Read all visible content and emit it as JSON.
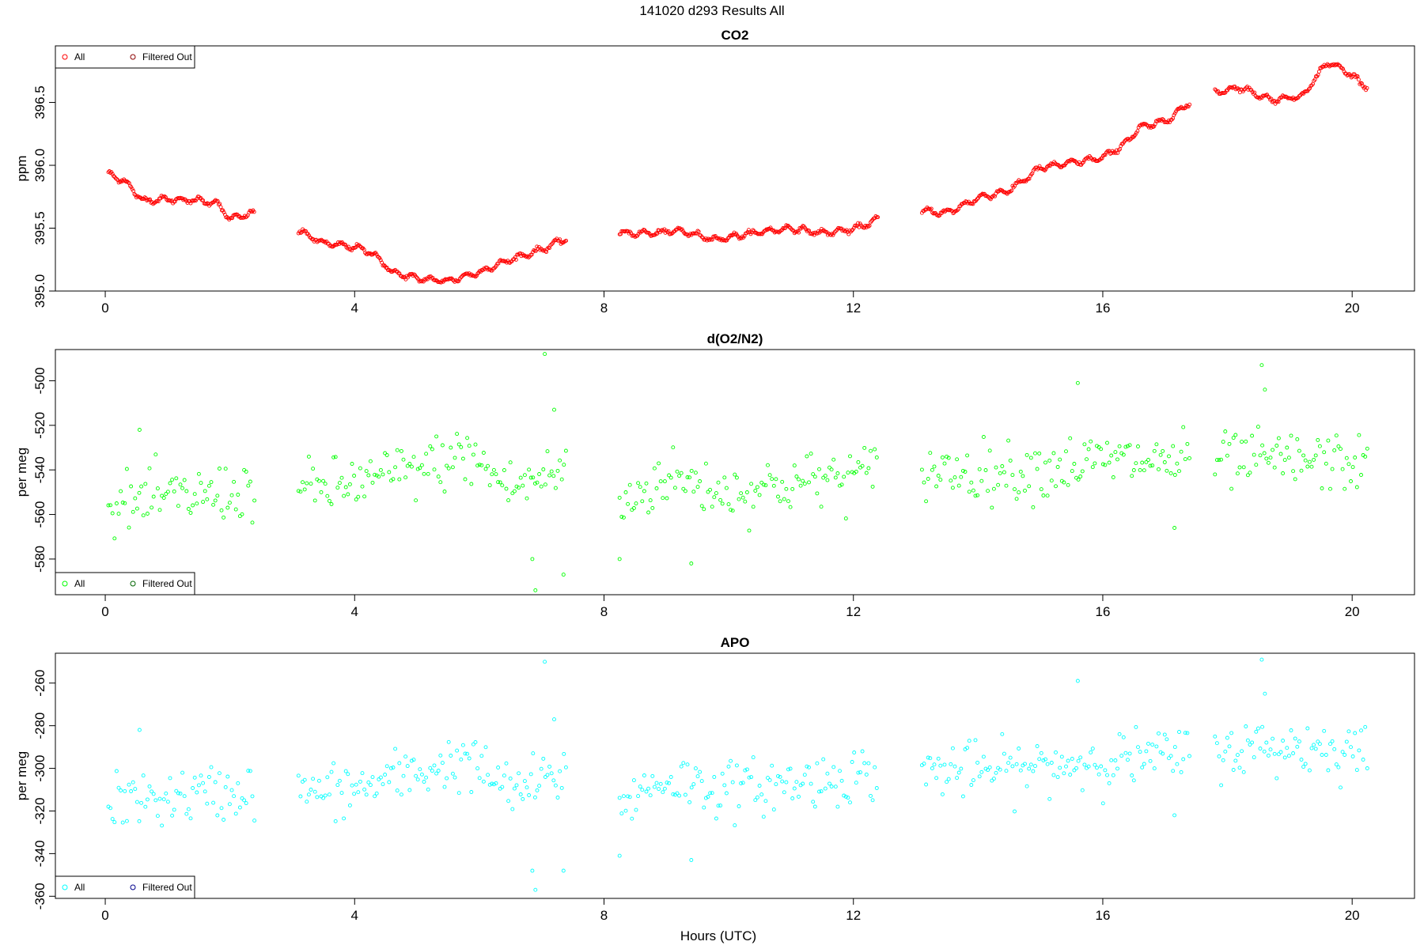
{
  "page_title": "141020   d293   Results All",
  "xlabel": "Hours (UTC)",
  "charts": [
    {
      "title": "CO2",
      "ylabel": "ppm",
      "color": "#ff0000",
      "legend": {
        "all": "All",
        "filtered": "Filtered Out",
        "filtered_color": "#8b0000",
        "position": "top-left"
      },
      "xlim": [
        -0.8,
        21.0
      ],
      "ylim": [
        395.0,
        396.95
      ],
      "xticks": [
        0,
        4,
        8,
        12,
        16,
        20
      ],
      "yticks": [
        395.0,
        395.5,
        396.0,
        396.5
      ],
      "ytick_labels": [
        "395.0",
        "395.5",
        "396.0",
        "396.5"
      ],
      "kind": "smooth",
      "segments": [
        {
          "range": [
            0.05,
            2.4
          ],
          "knots": [
            [
              0.05,
              395.93
            ],
            [
              0.3,
              395.88
            ],
            [
              0.6,
              395.72
            ],
            [
              1.0,
              395.73
            ],
            [
              1.5,
              395.72
            ],
            [
              1.8,
              395.7
            ],
            [
              2.0,
              395.57
            ],
            [
              2.2,
              395.6
            ],
            [
              2.4,
              395.62
            ]
          ]
        },
        {
          "range": [
            3.1,
            7.4
          ],
          "knots": [
            [
              3.1,
              395.48
            ],
            [
              3.5,
              395.38
            ],
            [
              4.0,
              395.35
            ],
            [
              4.3,
              395.3
            ],
            [
              4.6,
              395.15
            ],
            [
              5.0,
              395.1
            ],
            [
              5.5,
              395.08
            ],
            [
              6.0,
              395.15
            ],
            [
              6.5,
              395.25
            ],
            [
              7.0,
              395.33
            ],
            [
              7.4,
              395.42
            ]
          ]
        },
        {
          "range": [
            8.25,
            12.4
          ],
          "knots": [
            [
              8.25,
              395.46
            ],
            [
              8.8,
              395.46
            ],
            [
              9.2,
              395.48
            ],
            [
              9.8,
              395.41
            ],
            [
              10.5,
              395.47
            ],
            [
              11.0,
              395.5
            ],
            [
              11.5,
              395.46
            ],
            [
              12.0,
              395.49
            ],
            [
              12.4,
              395.57
            ]
          ]
        },
        {
          "range": [
            13.1,
            17.4
          ],
          "knots": [
            [
              13.1,
              395.64
            ],
            [
              13.5,
              395.62
            ],
            [
              14.0,
              395.74
            ],
            [
              14.5,
              395.8
            ],
            [
              15.0,
              395.98
            ],
            [
              15.5,
              396.02
            ],
            [
              16.0,
              396.06
            ],
            [
              16.3,
              396.15
            ],
            [
              16.6,
              396.3
            ],
            [
              17.0,
              396.35
            ],
            [
              17.4,
              396.5
            ]
          ]
        },
        {
          "range": [
            17.8,
            20.25
          ],
          "knots": [
            [
              17.8,
              396.58
            ],
            [
              18.2,
              396.62
            ],
            [
              18.7,
              396.52
            ],
            [
              19.2,
              396.55
            ],
            [
              19.6,
              396.82
            ],
            [
              19.9,
              396.75
            ],
            [
              20.25,
              396.62
            ]
          ]
        }
      ],
      "noise": 0.02
    },
    {
      "title": "d(O2/N2)",
      "ylabel": "per meg",
      "color": "#00ff00",
      "legend": {
        "all": "All",
        "filtered": "Filtered Out",
        "filtered_color": "#006400",
        "position": "bottom-left"
      },
      "xlim": [
        -0.8,
        21.0
      ],
      "ylim": [
        -596,
        -486
      ],
      "xticks": [
        0,
        4,
        8,
        12,
        16,
        20
      ],
      "yticks": [
        -580,
        -560,
        -540,
        -520,
        -500
      ],
      "ytick_labels": [
        "-580",
        "-560",
        "-540",
        "-520",
        "-500"
      ],
      "kind": "scatter",
      "segments": [
        {
          "range": [
            0.05,
            2.4
          ],
          "knots": [
            [
              0.05,
              -556
            ],
            [
              1.0,
              -553
            ],
            [
              2.4,
              -549
            ]
          ]
        },
        {
          "range": [
            3.1,
            7.4
          ],
          "knots": [
            [
              3.1,
              -550
            ],
            [
              4.0,
              -546
            ],
            [
              5.0,
              -540
            ],
            [
              5.8,
              -533
            ],
            [
              6.5,
              -548
            ],
            [
              7.4,
              -540
            ]
          ]
        },
        {
          "range": [
            8.25,
            12.4
          ],
          "knots": [
            [
              8.25,
              -556
            ],
            [
              9.0,
              -543
            ],
            [
              10.0,
              -550
            ],
            [
              11.0,
              -546
            ],
            [
              12.4,
              -541
            ]
          ]
        },
        {
          "range": [
            13.1,
            17.4
          ],
          "knots": [
            [
              13.1,
              -540
            ],
            [
              14.5,
              -541
            ],
            [
              16.0,
              -536
            ],
            [
              17.4,
              -536
            ]
          ]
        },
        {
          "range": [
            17.8,
            20.25
          ],
          "knots": [
            [
              17.8,
              -536
            ],
            [
              19.0,
              -536
            ],
            [
              20.25,
              -537
            ]
          ]
        }
      ],
      "noise": 6.5,
      "outliers": [
        [
          7.05,
          -488
        ],
        [
          6.9,
          -594
        ],
        [
          7.35,
          -587
        ],
        [
          6.85,
          -580
        ],
        [
          8.25,
          -580
        ],
        [
          9.4,
          -582
        ],
        [
          17.15,
          -566
        ],
        [
          18.55,
          -493
        ],
        [
          15.6,
          -501
        ],
        [
          18.6,
          -504
        ],
        [
          0.55,
          -522
        ],
        [
          7.2,
          -513
        ]
      ]
    },
    {
      "title": "APO",
      "ylabel": "per meg",
      "color": "#00ffff",
      "legend": {
        "all": "All",
        "filtered": "Filtered Out",
        "filtered_color": "#00008b",
        "position": "bottom-left"
      },
      "xlim": [
        -0.8,
        21.0
      ],
      "ylim": [
        -361,
        -246
      ],
      "xticks": [
        0,
        4,
        8,
        12,
        16,
        20
      ],
      "yticks": [
        -360,
        -340,
        -320,
        -300,
        -280,
        -260
      ],
      "ytick_labels": [
        "-360",
        "-340",
        "-320",
        "-300",
        "-280",
        "-260"
      ],
      "kind": "scatter",
      "segments": [
        {
          "range": [
            0.05,
            2.4
          ],
          "knots": [
            [
              0.05,
              -316
            ],
            [
              1.0,
              -314
            ],
            [
              2.4,
              -310
            ]
          ]
        },
        {
          "range": [
            3.1,
            7.4
          ],
          "knots": [
            [
              3.1,
              -312
            ],
            [
              4.0,
              -310
            ],
            [
              5.0,
              -302
            ],
            [
              5.8,
              -296
            ],
            [
              6.5,
              -311
            ],
            [
              7.4,
              -303
            ]
          ]
        },
        {
          "range": [
            8.25,
            12.4
          ],
          "knots": [
            [
              8.25,
              -316
            ],
            [
              9.0,
              -305
            ],
            [
              10.0,
              -310
            ],
            [
              11.0,
              -307
            ],
            [
              12.4,
              -302
            ]
          ]
        },
        {
          "range": [
            13.1,
            17.4
          ],
          "knots": [
            [
              13.1,
              -301
            ],
            [
              14.5,
              -301
            ],
            [
              16.0,
              -296
            ],
            [
              17.4,
              -294
            ]
          ]
        },
        {
          "range": [
            17.8,
            20.25
          ],
          "knots": [
            [
              17.8,
              -291
            ],
            [
              19.0,
              -290
            ],
            [
              20.25,
              -291
            ]
          ]
        }
      ],
      "noise": 6.5,
      "outliers": [
        [
          7.05,
          -250
        ],
        [
          6.9,
          -357
        ],
        [
          7.35,
          -348
        ],
        [
          6.85,
          -348
        ],
        [
          8.25,
          -341
        ],
        [
          9.4,
          -343
        ],
        [
          17.15,
          -322
        ],
        [
          18.55,
          -249
        ],
        [
          15.6,
          -259
        ],
        [
          18.6,
          -265
        ],
        [
          0.55,
          -282
        ],
        [
          7.2,
          -277
        ]
      ]
    }
  ]
}
